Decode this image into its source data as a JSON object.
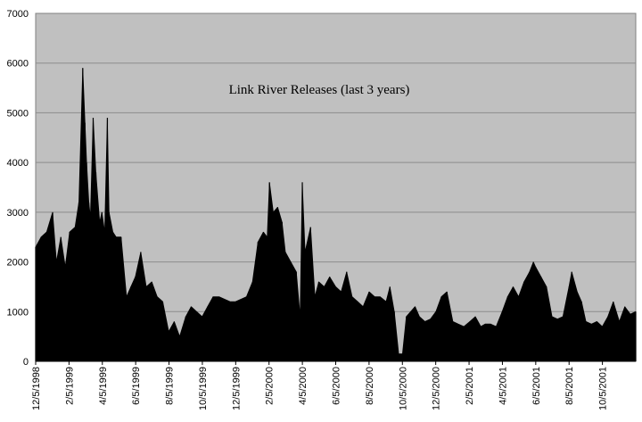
{
  "chart_data": {
    "type": "area",
    "title": "Link River Releases (last 3 years)",
    "xlabel": "",
    "ylabel": "",
    "ylim": [
      0,
      7000
    ],
    "xlim": [
      "1998-12-05",
      "2001-12-05"
    ],
    "y_ticks": [
      0,
      1000,
      2000,
      3000,
      4000,
      5000,
      6000,
      7000
    ],
    "x_tick_labels": [
      "12/5/1998",
      "2/5/1999",
      "4/5/1999",
      "6/5/1999",
      "8/5/1999",
      "10/5/1999",
      "12/5/1999",
      "2/5/2000",
      "4/5/2000",
      "6/5/2000",
      "8/5/2000",
      "10/5/2000",
      "12/5/2000",
      "2/5/2001",
      "4/5/2001",
      "6/5/2001",
      "8/5/2001",
      "10/5/2001"
    ],
    "grid": "horizontal",
    "plot_background": "#c0c0c0",
    "series_color": "#000000",
    "series": [
      {
        "x": [
          "1998-12-05",
          "1998-12-15",
          "1998-12-25",
          "1999-01-05",
          "1999-01-12",
          "1999-01-20",
          "1999-01-28",
          "1999-02-05",
          "1999-02-15",
          "1999-02-22",
          "1999-03-01",
          "1999-03-05",
          "1999-03-08",
          "1999-03-12",
          "1999-03-15",
          "1999-03-20",
          "1999-03-25",
          "1999-04-01",
          "1999-04-05",
          "1999-04-10",
          "1999-04-15",
          "1999-04-18",
          "1999-04-25",
          "1999-05-01",
          "1999-05-10",
          "1999-05-20",
          "1999-05-28",
          "1999-06-05",
          "1999-06-15",
          "1999-06-25",
          "1999-07-05",
          "1999-07-15",
          "1999-07-25",
          "1999-08-05",
          "1999-08-15",
          "1999-08-25",
          "1999-09-05",
          "1999-09-15",
          "1999-09-25",
          "1999-10-05",
          "1999-10-15",
          "1999-10-25",
          "1999-11-05",
          "1999-11-15",
          "1999-11-25",
          "1999-12-05",
          "1999-12-15",
          "1999-12-25",
          "2000-01-05",
          "2000-01-15",
          "2000-01-25",
          "2000-02-01",
          "2000-02-05",
          "2000-02-12",
          "2000-02-20",
          "2000-02-28",
          "2000-03-05",
          "2000-03-15",
          "2000-03-25",
          "2000-04-01",
          "2000-04-05",
          "2000-04-10",
          "2000-04-20",
          "2000-04-28",
          "2000-05-05",
          "2000-05-15",
          "2000-05-25",
          "2000-06-05",
          "2000-06-15",
          "2000-06-25",
          "2000-07-05",
          "2000-07-15",
          "2000-07-25",
          "2000-08-05",
          "2000-08-15",
          "2000-08-25",
          "2000-09-05",
          "2000-09-12",
          "2000-09-20",
          "2000-09-28",
          "2000-10-05",
          "2000-10-12",
          "2000-10-20",
          "2000-10-28",
          "2000-11-05",
          "2000-11-15",
          "2000-11-25",
          "2000-12-05",
          "2000-12-15",
          "2000-12-25",
          "2001-01-05",
          "2001-01-15",
          "2001-01-25",
          "2001-02-05",
          "2001-02-15",
          "2001-02-25",
          "2001-03-05",
          "2001-03-15",
          "2001-03-25",
          "2001-04-05",
          "2001-04-15",
          "2001-04-25",
          "2001-05-05",
          "2001-05-15",
          "2001-05-25",
          "2001-06-01",
          "2001-06-05",
          "2001-06-15",
          "2001-06-25",
          "2001-07-05",
          "2001-07-15",
          "2001-07-25",
          "2001-08-05",
          "2001-08-10",
          "2001-08-20",
          "2001-08-28",
          "2001-09-05",
          "2001-09-15",
          "2001-09-25",
          "2001-10-05",
          "2001-10-15",
          "2001-10-25",
          "2001-11-05",
          "2001-11-15",
          "2001-11-25",
          "2001-12-05"
        ],
        "y": [
          2300,
          2500,
          2600,
          3000,
          2000,
          2500,
          1900,
          2600,
          2700,
          3200,
          5900,
          4800,
          4000,
          3200,
          2900,
          4900,
          3800,
          2800,
          3000,
          2600,
          4900,
          3000,
          2600,
          2500,
          2500,
          1300,
          1500,
          1700,
          2200,
          1500,
          1600,
          1300,
          1200,
          600,
          800,
          500,
          900,
          1100,
          1000,
          900,
          1100,
          1300,
          1300,
          1250,
          1200,
          1200,
          1250,
          1300,
          1600,
          2400,
          2600,
          2500,
          3600,
          3000,
          3100,
          2800,
          2200,
          2000,
          1800,
          900,
          3600,
          2200,
          2700,
          1300,
          1600,
          1500,
          1700,
          1500,
          1400,
          1800,
          1300,
          1200,
          1100,
          1400,
          1300,
          1300,
          1200,
          1500,
          1000,
          150,
          150,
          900,
          1000,
          1100,
          900,
          800,
          850,
          1000,
          1300,
          1400,
          800,
          750,
          700,
          800,
          900,
          700,
          750,
          750,
          700,
          1000,
          1300,
          1500,
          1300,
          1600,
          1800,
          2000,
          1900,
          1700,
          1500,
          900,
          850,
          900,
          1500,
          1800,
          1400,
          1200,
          800,
          750,
          800,
          700,
          900,
          1200,
          800,
          1100,
          950,
          1000
        ]
      }
    ]
  }
}
